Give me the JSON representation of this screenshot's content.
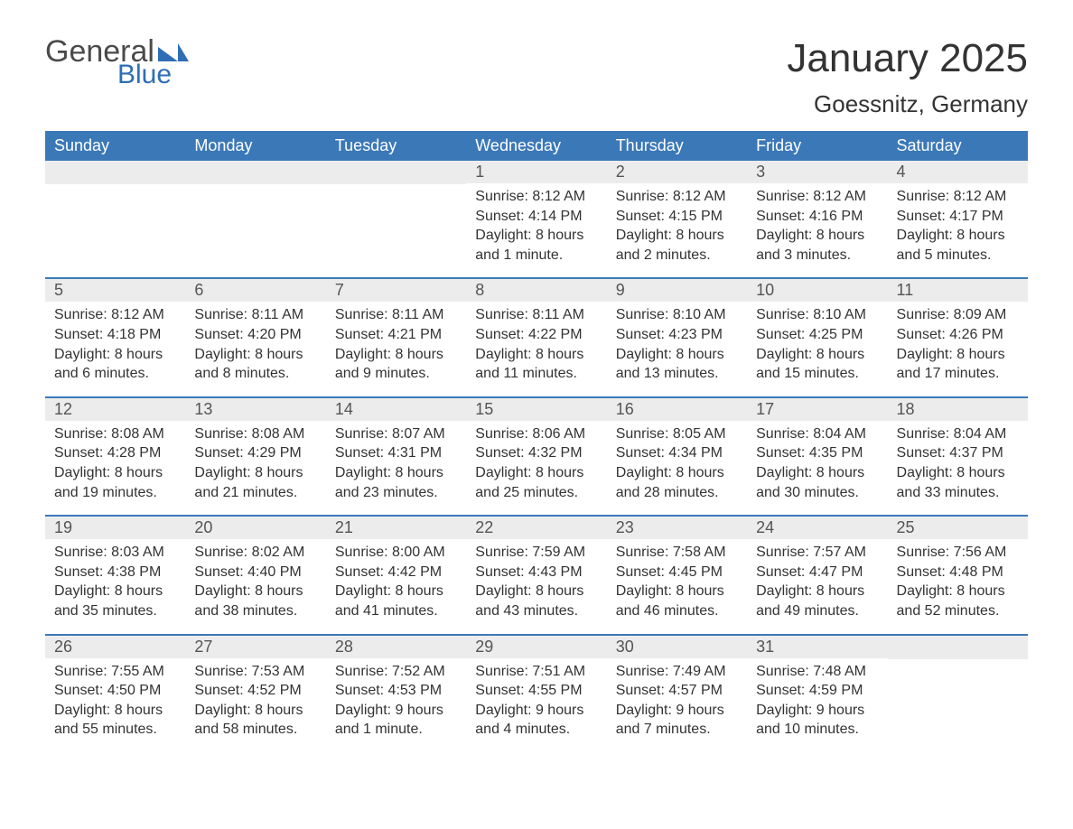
{
  "logo": {
    "text1": "General",
    "text2": "Blue"
  },
  "title": "January 2025",
  "location": "Goessnitz, Germany",
  "colors": {
    "header_bg": "#3b78b8",
    "header_text": "#ffffff",
    "daynum_bg": "#ececec",
    "border": "#3b78b8",
    "text": "#333333",
    "logo_gray": "#4a4a4a",
    "logo_blue": "#2e6eb5"
  },
  "weekdays": [
    "Sunday",
    "Monday",
    "Tuesday",
    "Wednesday",
    "Thursday",
    "Friday",
    "Saturday"
  ],
  "weeks": [
    [
      null,
      null,
      null,
      {
        "n": "1",
        "sunrise": "Sunrise: 8:12 AM",
        "sunset": "Sunset: 4:14 PM",
        "d1": "Daylight: 8 hours",
        "d2": "and 1 minute."
      },
      {
        "n": "2",
        "sunrise": "Sunrise: 8:12 AM",
        "sunset": "Sunset: 4:15 PM",
        "d1": "Daylight: 8 hours",
        "d2": "and 2 minutes."
      },
      {
        "n": "3",
        "sunrise": "Sunrise: 8:12 AM",
        "sunset": "Sunset: 4:16 PM",
        "d1": "Daylight: 8 hours",
        "d2": "and 3 minutes."
      },
      {
        "n": "4",
        "sunrise": "Sunrise: 8:12 AM",
        "sunset": "Sunset: 4:17 PM",
        "d1": "Daylight: 8 hours",
        "d2": "and 5 minutes."
      }
    ],
    [
      {
        "n": "5",
        "sunrise": "Sunrise: 8:12 AM",
        "sunset": "Sunset: 4:18 PM",
        "d1": "Daylight: 8 hours",
        "d2": "and 6 minutes."
      },
      {
        "n": "6",
        "sunrise": "Sunrise: 8:11 AM",
        "sunset": "Sunset: 4:20 PM",
        "d1": "Daylight: 8 hours",
        "d2": "and 8 minutes."
      },
      {
        "n": "7",
        "sunrise": "Sunrise: 8:11 AM",
        "sunset": "Sunset: 4:21 PM",
        "d1": "Daylight: 8 hours",
        "d2": "and 9 minutes."
      },
      {
        "n": "8",
        "sunrise": "Sunrise: 8:11 AM",
        "sunset": "Sunset: 4:22 PM",
        "d1": "Daylight: 8 hours",
        "d2": "and 11 minutes."
      },
      {
        "n": "9",
        "sunrise": "Sunrise: 8:10 AM",
        "sunset": "Sunset: 4:23 PM",
        "d1": "Daylight: 8 hours",
        "d2": "and 13 minutes."
      },
      {
        "n": "10",
        "sunrise": "Sunrise: 8:10 AM",
        "sunset": "Sunset: 4:25 PM",
        "d1": "Daylight: 8 hours",
        "d2": "and 15 minutes."
      },
      {
        "n": "11",
        "sunrise": "Sunrise: 8:09 AM",
        "sunset": "Sunset: 4:26 PM",
        "d1": "Daylight: 8 hours",
        "d2": "and 17 minutes."
      }
    ],
    [
      {
        "n": "12",
        "sunrise": "Sunrise: 8:08 AM",
        "sunset": "Sunset: 4:28 PM",
        "d1": "Daylight: 8 hours",
        "d2": "and 19 minutes."
      },
      {
        "n": "13",
        "sunrise": "Sunrise: 8:08 AM",
        "sunset": "Sunset: 4:29 PM",
        "d1": "Daylight: 8 hours",
        "d2": "and 21 minutes."
      },
      {
        "n": "14",
        "sunrise": "Sunrise: 8:07 AM",
        "sunset": "Sunset: 4:31 PM",
        "d1": "Daylight: 8 hours",
        "d2": "and 23 minutes."
      },
      {
        "n": "15",
        "sunrise": "Sunrise: 8:06 AM",
        "sunset": "Sunset: 4:32 PM",
        "d1": "Daylight: 8 hours",
        "d2": "and 25 minutes."
      },
      {
        "n": "16",
        "sunrise": "Sunrise: 8:05 AM",
        "sunset": "Sunset: 4:34 PM",
        "d1": "Daylight: 8 hours",
        "d2": "and 28 minutes."
      },
      {
        "n": "17",
        "sunrise": "Sunrise: 8:04 AM",
        "sunset": "Sunset: 4:35 PM",
        "d1": "Daylight: 8 hours",
        "d2": "and 30 minutes."
      },
      {
        "n": "18",
        "sunrise": "Sunrise: 8:04 AM",
        "sunset": "Sunset: 4:37 PM",
        "d1": "Daylight: 8 hours",
        "d2": "and 33 minutes."
      }
    ],
    [
      {
        "n": "19",
        "sunrise": "Sunrise: 8:03 AM",
        "sunset": "Sunset: 4:38 PM",
        "d1": "Daylight: 8 hours",
        "d2": "and 35 minutes."
      },
      {
        "n": "20",
        "sunrise": "Sunrise: 8:02 AM",
        "sunset": "Sunset: 4:40 PM",
        "d1": "Daylight: 8 hours",
        "d2": "and 38 minutes."
      },
      {
        "n": "21",
        "sunrise": "Sunrise: 8:00 AM",
        "sunset": "Sunset: 4:42 PM",
        "d1": "Daylight: 8 hours",
        "d2": "and 41 minutes."
      },
      {
        "n": "22",
        "sunrise": "Sunrise: 7:59 AM",
        "sunset": "Sunset: 4:43 PM",
        "d1": "Daylight: 8 hours",
        "d2": "and 43 minutes."
      },
      {
        "n": "23",
        "sunrise": "Sunrise: 7:58 AM",
        "sunset": "Sunset: 4:45 PM",
        "d1": "Daylight: 8 hours",
        "d2": "and 46 minutes."
      },
      {
        "n": "24",
        "sunrise": "Sunrise: 7:57 AM",
        "sunset": "Sunset: 4:47 PM",
        "d1": "Daylight: 8 hours",
        "d2": "and 49 minutes."
      },
      {
        "n": "25",
        "sunrise": "Sunrise: 7:56 AM",
        "sunset": "Sunset: 4:48 PM",
        "d1": "Daylight: 8 hours",
        "d2": "and 52 minutes."
      }
    ],
    [
      {
        "n": "26",
        "sunrise": "Sunrise: 7:55 AM",
        "sunset": "Sunset: 4:50 PM",
        "d1": "Daylight: 8 hours",
        "d2": "and 55 minutes."
      },
      {
        "n": "27",
        "sunrise": "Sunrise: 7:53 AM",
        "sunset": "Sunset: 4:52 PM",
        "d1": "Daylight: 8 hours",
        "d2": "and 58 minutes."
      },
      {
        "n": "28",
        "sunrise": "Sunrise: 7:52 AM",
        "sunset": "Sunset: 4:53 PM",
        "d1": "Daylight: 9 hours",
        "d2": "and 1 minute."
      },
      {
        "n": "29",
        "sunrise": "Sunrise: 7:51 AM",
        "sunset": "Sunset: 4:55 PM",
        "d1": "Daylight: 9 hours",
        "d2": "and 4 minutes."
      },
      {
        "n": "30",
        "sunrise": "Sunrise: 7:49 AM",
        "sunset": "Sunset: 4:57 PM",
        "d1": "Daylight: 9 hours",
        "d2": "and 7 minutes."
      },
      {
        "n": "31",
        "sunrise": "Sunrise: 7:48 AM",
        "sunset": "Sunset: 4:59 PM",
        "d1": "Daylight: 9 hours",
        "d2": "and 10 minutes."
      },
      null
    ]
  ]
}
